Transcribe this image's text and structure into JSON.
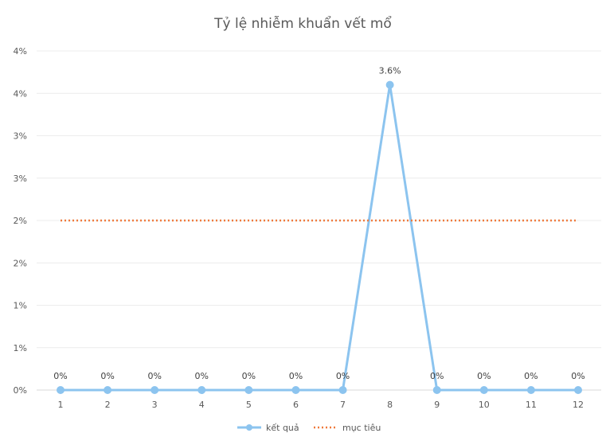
{
  "chart_data": {
    "type": "line",
    "title": "Tỷ lệ nhiễm khuẩn vết mổ",
    "x": [
      "1",
      "2",
      "3",
      "4",
      "5",
      "6",
      "7",
      "8",
      "9",
      "10",
      "11",
      "12"
    ],
    "y_tick_labels": [
      "0%",
      "1%",
      "1%",
      "2%",
      "2%",
      "3%",
      "3%",
      "4%",
      "4%"
    ],
    "ylim": [
      0,
      0.04
    ],
    "grid": true,
    "legend_position": "bottom",
    "series": [
      {
        "name": "kết quả",
        "values": [
          0,
          0,
          0,
          0,
          0,
          0,
          0,
          0.036,
          0,
          0,
          0,
          0
        ],
        "data_labels": [
          "0%",
          "0%",
          "0%",
          "0%",
          "0%",
          "0%",
          "0%",
          "3.6%",
          "0%",
          "0%",
          "0%",
          "0%"
        ],
        "color": "#8cc4ef",
        "style": "solid-markers"
      },
      {
        "name": "mục tiêu",
        "values": [
          0.02,
          0.02,
          0.02,
          0.02,
          0.02,
          0.02,
          0.02,
          0.02,
          0.02,
          0.02,
          0.02,
          0.02
        ],
        "color": "#f07a3c",
        "style": "dotted"
      }
    ]
  }
}
